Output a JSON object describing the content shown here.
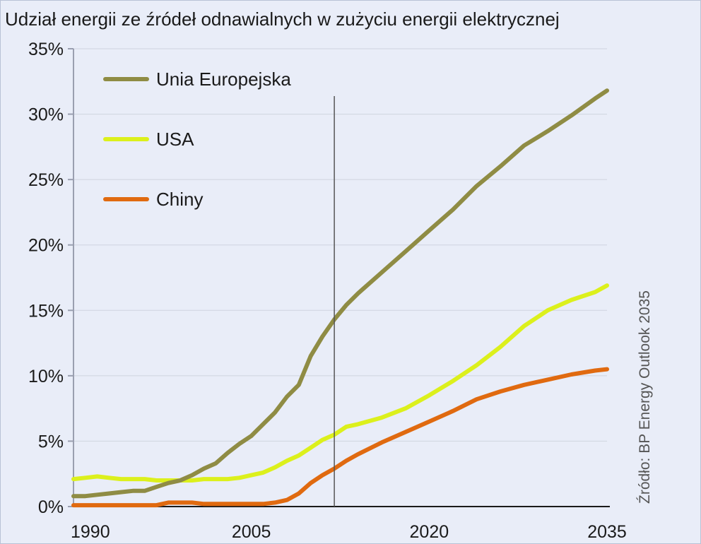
{
  "chart_data": {
    "type": "line",
    "title": "Udział energii ze źródeł odnawialnych w zużyciu energii elektrycznej",
    "source": "Źródło: BP Energy Outlook 2035",
    "xlabel": "",
    "ylabel": "",
    "xlim": [
      1990,
      2035
    ],
    "ylim": [
      0,
      35
    ],
    "x_tick_labels": [
      "1990",
      "2005",
      "2020",
      "2035"
    ],
    "x_tick_values": [
      1990,
      2005,
      2020,
      2035
    ],
    "y_tick_labels": [
      "0%",
      "5%",
      "10%",
      "15%",
      "20%",
      "25%",
      "30%",
      "35%"
    ],
    "y_tick_values": [
      0,
      5,
      10,
      15,
      20,
      25,
      30,
      35
    ],
    "marker_year": 2012,
    "legend_position": "top-left",
    "series": [
      {
        "name": "Unia Europejska",
        "color": "#8f8c44",
        "x": [
          1990,
          1991,
          1992,
          1993,
          1994,
          1995,
          1996,
          1997,
          1998,
          1999,
          2000,
          2001,
          2002,
          2003,
          2004,
          2005,
          2006,
          2007,
          2008,
          2009,
          2010,
          2011,
          2012,
          2013,
          2014,
          2016,
          2018,
          2020,
          2022,
          2024,
          2026,
          2028,
          2030,
          2032,
          2034,
          2035
        ],
        "y": [
          0.8,
          0.8,
          0.9,
          1.0,
          1.1,
          1.2,
          1.2,
          1.5,
          1.8,
          2.0,
          2.4,
          2.9,
          3.3,
          4.1,
          4.8,
          5.4,
          6.3,
          7.2,
          8.4,
          9.3,
          11.5,
          13.0,
          14.3,
          15.4,
          16.3,
          17.9,
          19.5,
          21.1,
          22.7,
          24.5,
          26.0,
          27.6,
          28.7,
          29.9,
          31.2,
          31.8
        ]
      },
      {
        "name": "USA",
        "color": "#dcf01c",
        "x": [
          1990,
          1991,
          1992,
          1993,
          1994,
          1995,
          1996,
          1997,
          1998,
          1999,
          2000,
          2001,
          2002,
          2003,
          2004,
          2005,
          2006,
          2007,
          2008,
          2009,
          2010,
          2011,
          2012,
          2013,
          2014,
          2016,
          2018,
          2020,
          2022,
          2024,
          2026,
          2028,
          2030,
          2032,
          2034,
          2035
        ],
        "y": [
          2.1,
          2.2,
          2.3,
          2.2,
          2.1,
          2.1,
          2.1,
          2.0,
          2.0,
          2.0,
          2.0,
          2.1,
          2.1,
          2.1,
          2.2,
          2.4,
          2.6,
          3.0,
          3.5,
          3.9,
          4.5,
          5.1,
          5.5,
          6.1,
          6.3,
          6.8,
          7.5,
          8.5,
          9.6,
          10.8,
          12.2,
          13.8,
          15.0,
          15.8,
          16.4,
          16.9
        ]
      },
      {
        "name": "Chiny",
        "color": "#e06a10",
        "x": [
          1990,
          1991,
          1992,
          1993,
          1994,
          1995,
          1996,
          1997,
          1998,
          1999,
          2000,
          2001,
          2002,
          2003,
          2004,
          2005,
          2006,
          2007,
          2008,
          2009,
          2010,
          2011,
          2012,
          2013,
          2014,
          2016,
          2018,
          2020,
          2022,
          2024,
          2026,
          2028,
          2030,
          2032,
          2034,
          2035
        ],
        "y": [
          0.1,
          0.1,
          0.1,
          0.1,
          0.1,
          0.1,
          0.1,
          0.1,
          0.3,
          0.3,
          0.3,
          0.2,
          0.2,
          0.2,
          0.2,
          0.2,
          0.2,
          0.3,
          0.5,
          1.0,
          1.8,
          2.4,
          2.9,
          3.5,
          4.0,
          4.9,
          5.7,
          6.5,
          7.3,
          8.2,
          8.8,
          9.3,
          9.7,
          10.1,
          10.4,
          10.5
        ]
      }
    ]
  }
}
